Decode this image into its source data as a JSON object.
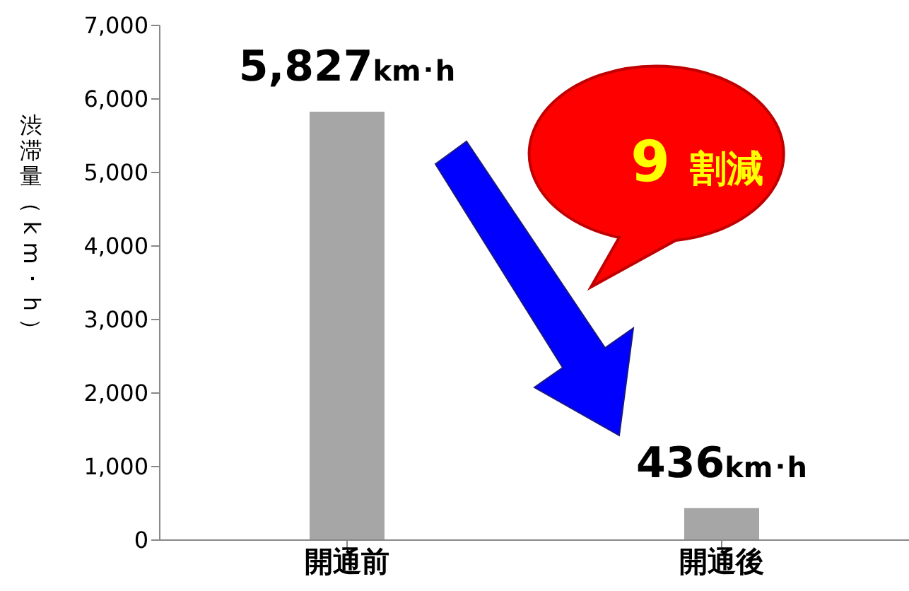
{
  "chart_data": {
    "type": "bar",
    "ylabel": "渋滞量（km･h）",
    "categories": [
      "開通前",
      "開通後"
    ],
    "values": [
      5827,
      436
    ],
    "color": "#a6a6a6",
    "value_labels": [
      "5,827km･h",
      "436km･h"
    ],
    "ylim": [
      0,
      7000
    ],
    "yticks": [
      {
        "value": 0,
        "label": "0"
      },
      {
        "value": 1000,
        "label": "1,000"
      },
      {
        "value": 2000,
        "label": "2,000"
      },
      {
        "value": 3000,
        "label": "3,000"
      },
      {
        "value": 4000,
        "label": "4,000"
      },
      {
        "value": 5000,
        "label": "5,000"
      },
      {
        "value": 6000,
        "label": "6,000"
      },
      {
        "value": 7000,
        "label": "7,000"
      }
    ],
    "grid": false,
    "legend": false,
    "annotations": [
      "9 割減"
    ]
  }
}
